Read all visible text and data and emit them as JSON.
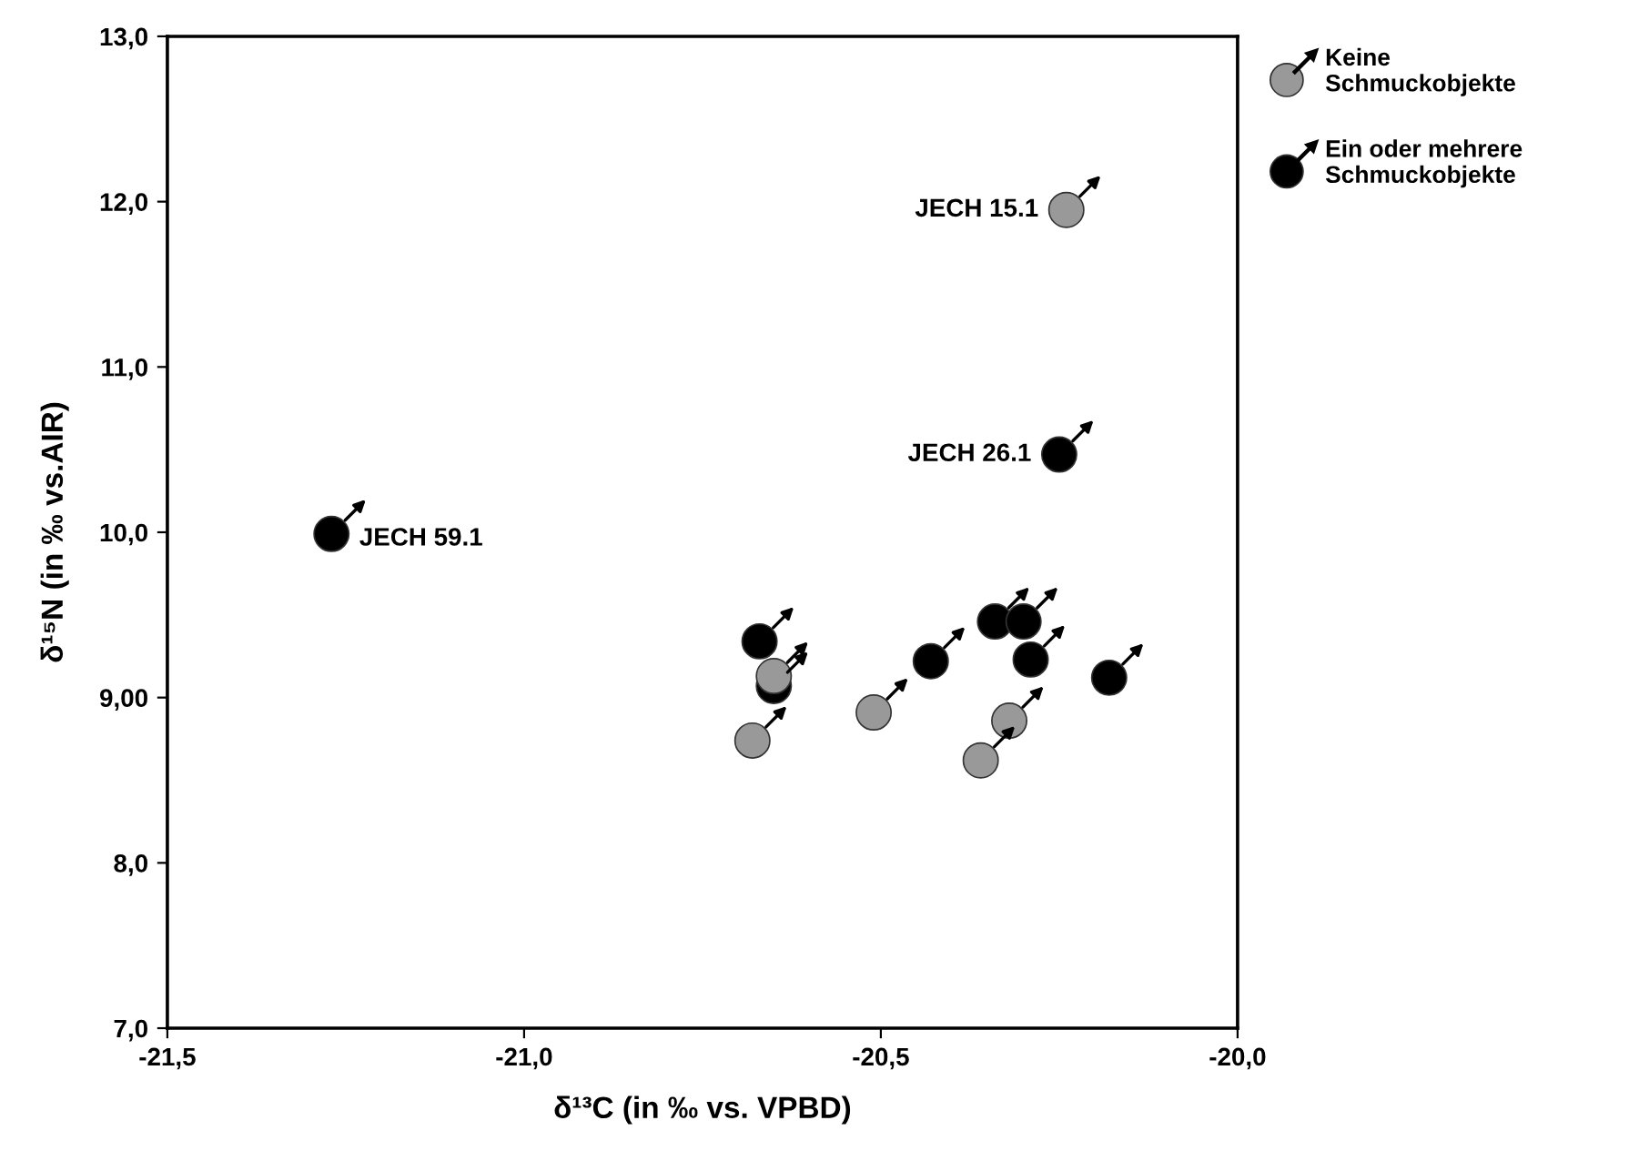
{
  "chart_data": {
    "type": "scatter",
    "xlabel": "δ¹³C (in ‰ vs. VPBD)",
    "ylabel": "δ¹⁵N (in ‰ vs.AIR)",
    "xlim": [
      -21.5,
      -20.0
    ],
    "xticks": [
      {
        "value": -21.5,
        "label": "-21,5"
      },
      {
        "value": -21.0,
        "label": "-21,0"
      },
      {
        "value": -20.5,
        "label": "-20,5"
      },
      {
        "value": -20.0,
        "label": "-20,0"
      }
    ],
    "ylim": [
      7.0,
      13.0
    ],
    "yticks": [
      {
        "value": 7,
        "label": "7,0"
      },
      {
        "value": 8,
        "label": "8,0"
      },
      {
        "value": 9,
        "label": "9,00"
      },
      {
        "value": 10,
        "label": "10,0"
      },
      {
        "value": 11,
        "label": "11,0"
      },
      {
        "value": 12,
        "label": "12,0"
      },
      {
        "value": 13,
        "label": "13,0"
      }
    ],
    "grid": false,
    "legend": "top right",
    "marker": "circle",
    "series": [
      {
        "name": "Keine\nSchmuckobjekte",
        "color": "#999999",
        "x": [
          -20.24,
          -20.65,
          -20.68,
          -20.51,
          -20.32,
          -20.36
        ],
        "values": [
          11.95,
          9.13,
          8.74,
          8.91,
          8.86,
          8.62
        ]
      },
      {
        "name": "Ein oder mehrere\nSchmuckobjekte",
        "color": "#000000",
        "x": [
          -20.25,
          -21.27,
          -20.67,
          -20.65,
          -20.43,
          -20.34,
          -20.3,
          -20.29,
          -20.18
        ],
        "values": [
          10.47,
          9.99,
          9.34,
          9.07,
          9.22,
          9.46,
          9.46,
          9.23,
          9.12
        ]
      }
    ],
    "annotations": [
      {
        "text": "JECH 15.1",
        "x": -20.24,
        "y": 11.95
      },
      {
        "text": "JECH 26.1",
        "x": -20.25,
        "y": 10.47
      },
      {
        "text": "JECH 59.1",
        "x": -21.27,
        "y": 9.99
      }
    ]
  }
}
